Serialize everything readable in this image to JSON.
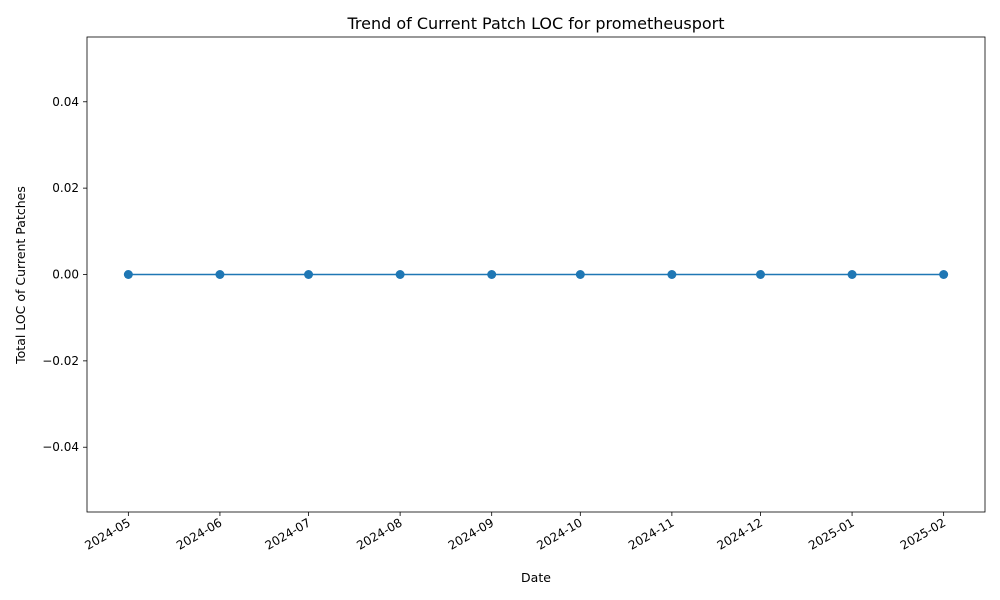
{
  "chart_data": {
    "type": "line",
    "title": "Trend of Current Patch LOC for prometheusport",
    "xlabel": "Date",
    "ylabel": "Total LOC of Current Patches",
    "x": [
      "2024-05-01",
      "2024-06-01",
      "2024-07-01",
      "2024-08-01",
      "2024-09-01",
      "2024-10-01",
      "2024-11-01",
      "2024-12-01",
      "2025-01-01",
      "2025-02-01"
    ],
    "x_tick_labels": [
      "2024-05",
      "2024-06",
      "2024-07",
      "2024-08",
      "2024-09",
      "2024-10",
      "2024-11",
      "2024-12",
      "2025-01",
      "2025-02"
    ],
    "series": [
      {
        "values": [
          0,
          0,
          0,
          0,
          0,
          0,
          0,
          0,
          0,
          0
        ],
        "color": "#1f77b4",
        "marker": "circle"
      }
    ],
    "y_ticks": [
      -0.04,
      -0.02,
      0.0,
      0.02,
      0.04
    ],
    "y_tick_labels": [
      "−0.04",
      "−0.02",
      "0.00",
      "0.02",
      "0.04"
    ],
    "ylim": [
      -0.055,
      0.055
    ],
    "xlim": [
      "2024-04-17",
      "2025-02-15"
    ],
    "grid": false,
    "legend": "none"
  }
}
